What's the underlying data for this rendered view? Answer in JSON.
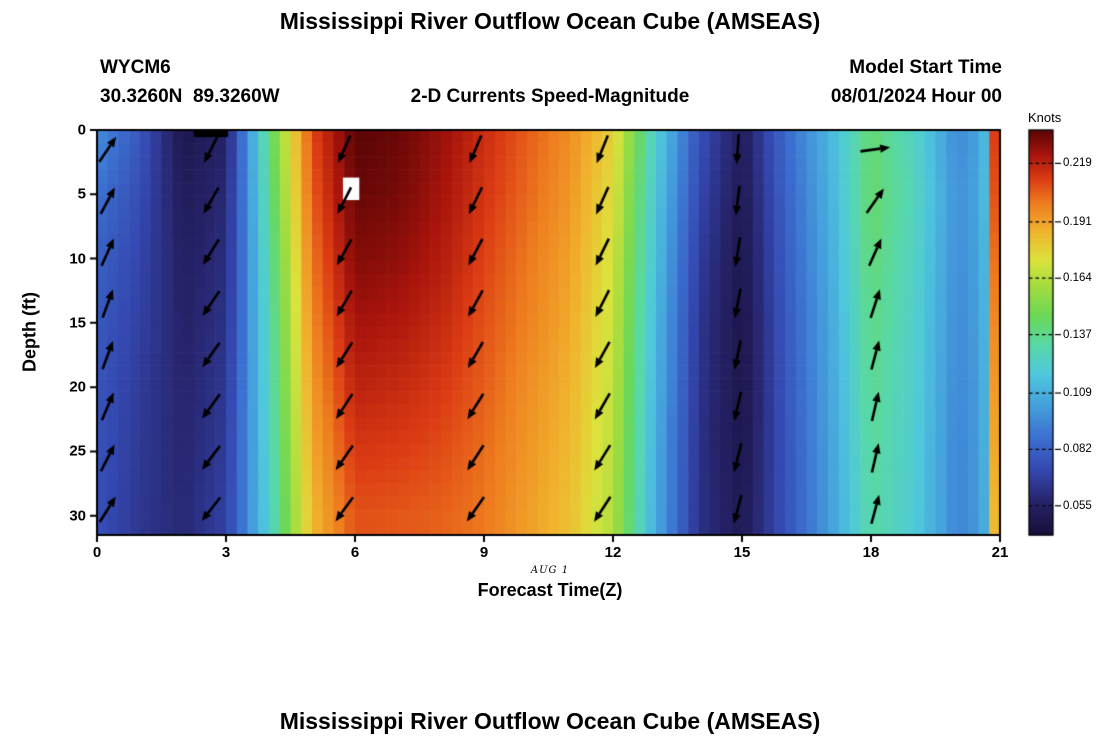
{
  "page": {
    "top_panel_title": "Mississippi River Outflow Ocean Cube (AMSEAS)",
    "bottom_panel_title": "Mississippi River Outflow Ocean Cube (AMSEAS)"
  },
  "header": {
    "station_id": "WYCM6",
    "station_coords": "30.3260N  89.3260W",
    "subtitle": "2-D Currents Speed-Magnitude",
    "model_start_label": "Model Start Time",
    "model_start_value": "08/01/2024 Hour 00"
  },
  "chart_data": {
    "type": "heatmap",
    "title": "2-D Currents Speed-Magnitude",
    "xlabel": "Forecast Time(Z)",
    "ylabel": "Depth (ft)",
    "date_label": "AUG 1",
    "x_range": [
      0,
      21
    ],
    "x_ticks": [
      0,
      3,
      6,
      9,
      12,
      15,
      18,
      21
    ],
    "depth_range": [
      0,
      31.5
    ],
    "y_ticks": [
      0,
      5,
      10,
      15,
      20,
      25,
      30
    ],
    "colorbar": {
      "label": "Knots",
      "vmin": 0.041,
      "vmax": 0.235,
      "ticks": [
        0.219,
        0.191,
        0.164,
        0.137,
        0.109,
        0.082,
        0.055
      ]
    },
    "colormap": [
      [
        0.0,
        "#150f38"
      ],
      [
        0.08,
        "#262268"
      ],
      [
        0.16,
        "#3448b0"
      ],
      [
        0.24,
        "#3c6fd0"
      ],
      [
        0.32,
        "#45a0dc"
      ],
      [
        0.4,
        "#4fc8dc"
      ],
      [
        0.47,
        "#58d8a8"
      ],
      [
        0.54,
        "#6ad858"
      ],
      [
        0.61,
        "#a0dc40"
      ],
      [
        0.68,
        "#dce23c"
      ],
      [
        0.75,
        "#f0b42e"
      ],
      [
        0.82,
        "#ee7d1f"
      ],
      [
        0.88,
        "#dc3c14"
      ],
      [
        0.94,
        "#a8140c"
      ],
      [
        1.0,
        "#5a0505"
      ]
    ],
    "times": [
      0,
      1,
      2,
      3,
      4,
      5,
      6,
      7,
      8,
      9,
      10,
      11,
      12,
      13,
      14,
      15,
      16,
      17,
      18,
      19,
      20,
      20.6,
      21
    ],
    "depths": [
      0,
      5,
      10,
      15,
      20,
      25,
      30
    ],
    "speed_grid_knots": [
      [
        0.098,
        0.078,
        0.048,
        0.056,
        0.14,
        0.21,
        0.235,
        0.233,
        0.226,
        0.216,
        0.206,
        0.196,
        0.178,
        0.122,
        0.076,
        0.052,
        0.085,
        0.11,
        0.142,
        0.126,
        0.096,
        0.105,
        0.212
      ],
      [
        0.088,
        0.074,
        0.052,
        0.059,
        0.136,
        0.206,
        0.233,
        0.231,
        0.224,
        0.214,
        0.204,
        0.194,
        0.174,
        0.118,
        0.072,
        0.05,
        0.082,
        0.108,
        0.143,
        0.128,
        0.098,
        0.106,
        0.208
      ],
      [
        0.082,
        0.071,
        0.055,
        0.061,
        0.132,
        0.201,
        0.229,
        0.227,
        0.221,
        0.211,
        0.201,
        0.191,
        0.171,
        0.115,
        0.068,
        0.048,
        0.08,
        0.106,
        0.141,
        0.126,
        0.097,
        0.105,
        0.202
      ],
      [
        0.079,
        0.069,
        0.056,
        0.063,
        0.129,
        0.197,
        0.224,
        0.222,
        0.217,
        0.208,
        0.199,
        0.189,
        0.169,
        0.112,
        0.065,
        0.047,
        0.078,
        0.104,
        0.139,
        0.124,
        0.096,
        0.104,
        0.197
      ],
      [
        0.077,
        0.067,
        0.057,
        0.065,
        0.127,
        0.193,
        0.219,
        0.217,
        0.213,
        0.206,
        0.196,
        0.187,
        0.167,
        0.11,
        0.064,
        0.047,
        0.077,
        0.103,
        0.137,
        0.123,
        0.095,
        0.103,
        0.193
      ],
      [
        0.076,
        0.066,
        0.058,
        0.067,
        0.125,
        0.189,
        0.213,
        0.212,
        0.209,
        0.203,
        0.194,
        0.185,
        0.165,
        0.108,
        0.063,
        0.048,
        0.076,
        0.102,
        0.135,
        0.122,
        0.094,
        0.103,
        0.189
      ],
      [
        0.075,
        0.065,
        0.059,
        0.069,
        0.123,
        0.185,
        0.208,
        0.207,
        0.205,
        0.201,
        0.192,
        0.183,
        0.163,
        0.107,
        0.063,
        0.05,
        0.076,
        0.101,
        0.133,
        0.121,
        0.094,
        0.102,
        0.185
      ]
    ],
    "surface_gap": {
      "t_start": 2.25,
      "t_end": 3.05,
      "depth": 0.55
    },
    "marker_box": {
      "t_start": 5.72,
      "t_end": 6.1,
      "depth_start": 3.7,
      "depth_end": 5.45
    },
    "quiver": {
      "depths": [
        1.5,
        5.5,
        9.5,
        13.5,
        17.5,
        21.5,
        25.5,
        29.5
      ],
      "columns": [
        {
          "t": 0.25,
          "angles_deg": [
            56,
            62,
            66,
            70,
            70,
            67,
            63,
            58
          ]
        },
        {
          "t": 2.65,
          "angles_deg": [
            243,
            240,
            238,
            236,
            235,
            234,
            233,
            232
          ]
        },
        {
          "t": 5.75,
          "angles_deg": [
            246,
            243,
            241,
            240,
            238,
            237,
            235,
            234
          ]
        },
        {
          "t": 8.8,
          "angles_deg": [
            247,
            244,
            242,
            241,
            240,
            238,
            237,
            235
          ]
        },
        {
          "t": 11.75,
          "angles_deg": [
            248,
            246,
            244,
            243,
            241,
            240,
            238,
            237
          ]
        },
        {
          "t": 14.9,
          "angles_deg": [
            266,
            263,
            261,
            259,
            258,
            257,
            256,
            255
          ]
        },
        {
          "t": 18.1,
          "angles_deg": [
            8,
            55,
            66,
            72,
            75,
            77,
            77,
            75
          ]
        }
      ]
    }
  }
}
